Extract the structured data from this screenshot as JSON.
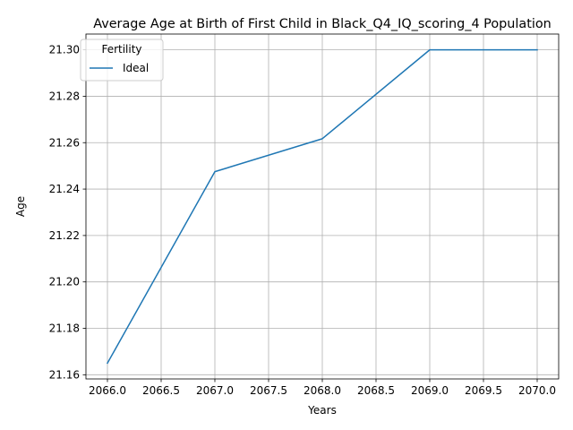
{
  "chart_data": {
    "type": "line",
    "title": "Average Age at Birth of First Child in Black_Q4_IQ_scoring_4 Population",
    "xlabel": "Years",
    "ylabel": "Age",
    "xlim": [
      2065.8,
      2070.2
    ],
    "ylim": [
      21.1582,
      21.3068
    ],
    "xticks": [
      2066.0,
      2066.5,
      2067.0,
      2067.5,
      2068.0,
      2068.5,
      2069.0,
      2069.5,
      2070.0
    ],
    "xtick_labels": [
      "2066.0",
      "2066.5",
      "2067.0",
      "2067.5",
      "2068.0",
      "2068.5",
      "2069.0",
      "2069.5",
      "2070.0"
    ],
    "yticks": [
      21.16,
      21.18,
      21.2,
      21.22,
      21.24,
      21.26,
      21.28,
      21.3
    ],
    "ytick_labels": [
      "21.16",
      "21.18",
      "21.20",
      "21.22",
      "21.24",
      "21.26",
      "21.28",
      "21.30"
    ],
    "grid": true,
    "legend": {
      "title": "Fertility",
      "placement": "top-left"
    },
    "series": [
      {
        "name": "Ideal",
        "color": "#1f77b4",
        "x": [
          2066,
          2067,
          2068,
          2069,
          2070
        ],
        "y": [
          21.165,
          21.2475,
          21.2617,
          21.3,
          21.3
        ]
      }
    ]
  }
}
